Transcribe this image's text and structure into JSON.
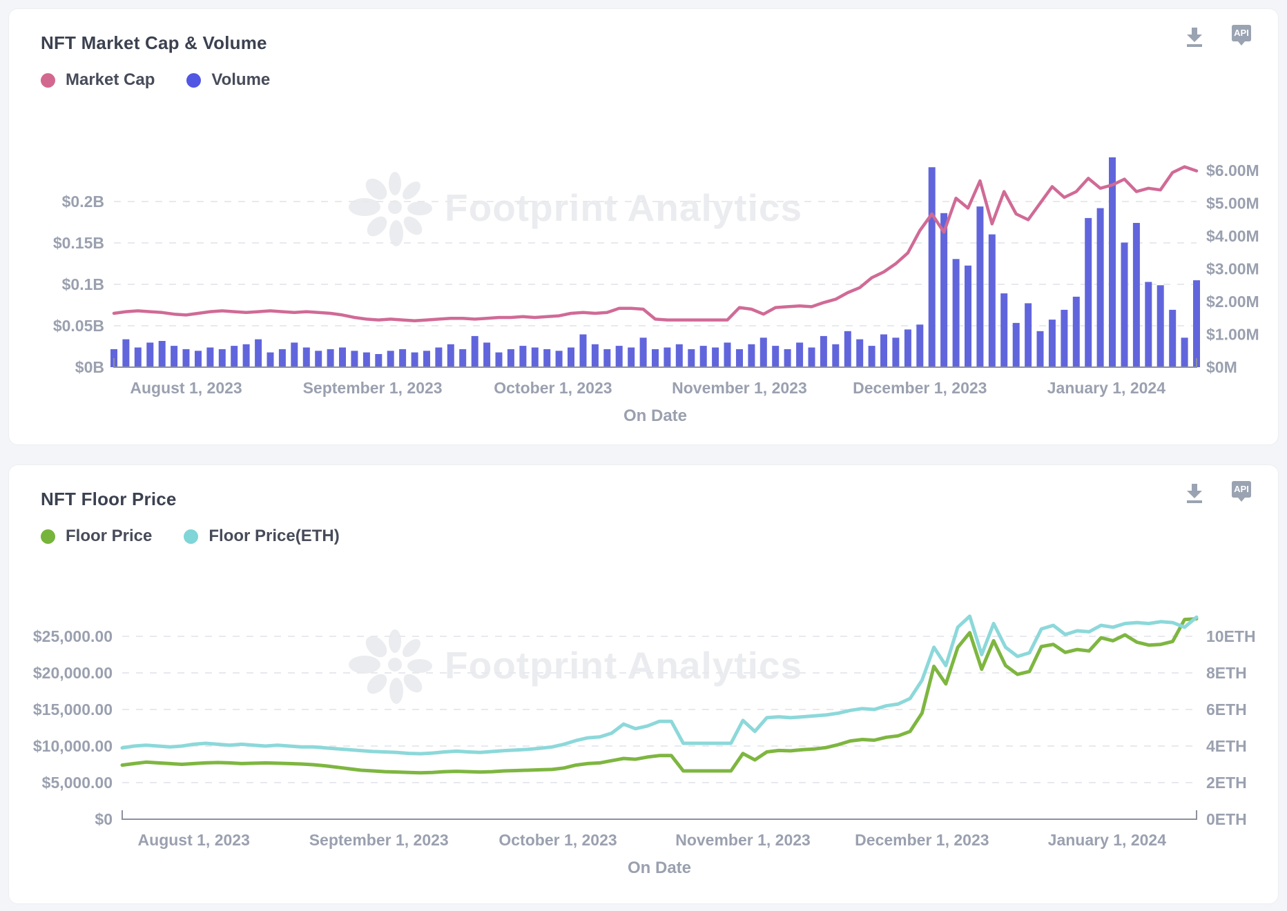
{
  "page": {
    "background": "#f3f5f8"
  },
  "toolbar": {
    "api_label": "API"
  },
  "charts": [
    {
      "title": "NFT Market Cap & Volume",
      "watermark": "Footprint Analytics",
      "legend": [
        {
          "label": "Market Cap",
          "color": "#d2688f"
        },
        {
          "label": "Volume",
          "color": "#5157e2"
        }
      ],
      "x_axis": {
        "title": "On Date",
        "total_days": 180,
        "months": [
          {
            "day": 12,
            "label": "August 1, 2023"
          },
          {
            "day": 43,
            "label": "September 1, 2023"
          },
          {
            "day": 73,
            "label": "October 1, 2023"
          },
          {
            "day": 104,
            "label": "November 1, 2023"
          },
          {
            "day": 134,
            "label": "December 1, 2023"
          },
          {
            "day": 165,
            "label": "January 1, 2024"
          }
        ]
      },
      "left_axis": {
        "tick_values": [
          0,
          0.05,
          0.1,
          0.15,
          0.2
        ],
        "ticks": [
          "$0B",
          "$0.05B",
          "$0.1B",
          "$0.15B",
          "$0.2B"
        ]
      },
      "right_axis": {
        "tick_values": [
          0,
          1,
          2,
          3,
          4,
          5,
          6
        ],
        "ticks": [
          "$0M",
          "$1.00M",
          "$2.00M",
          "$3.00M",
          "$4.00M",
          "$5.00M",
          "$6.00M"
        ]
      }
    },
    {
      "title": "NFT Floor Price",
      "watermark": "Footprint Analytics",
      "legend": [
        {
          "label": "Floor Price",
          "color": "#76b43c"
        },
        {
          "label": "Floor Price(ETH)",
          "color": "#7fd5d7"
        }
      ],
      "x_axis": {
        "title": "On Date",
        "total_days": 180,
        "months": [
          {
            "day": 12,
            "label": "August 1, 2023"
          },
          {
            "day": 43,
            "label": "September 1, 2023"
          },
          {
            "day": 73,
            "label": "October 1, 2023"
          },
          {
            "day": 104,
            "label": "November 1, 2023"
          },
          {
            "day": 134,
            "label": "December 1, 2023"
          },
          {
            "day": 165,
            "label": "January 1, 2024"
          }
        ]
      },
      "left_axis": {
        "tick_values": [
          0,
          5000,
          10000,
          15000,
          20000,
          25000
        ],
        "ticks": [
          "$0",
          "$5,000.00",
          "$10,000.00",
          "$15,000.00",
          "$20,000.00",
          "$25,000.00"
        ]
      },
      "right_axis": {
        "tick_values": [
          0,
          2,
          4,
          6,
          8,
          10
        ],
        "ticks": [
          "0ETH",
          "2ETH",
          "4ETH",
          "6ETH",
          "8ETH",
          "10ETH"
        ]
      }
    }
  ],
  "chart_data": [
    {
      "type": "line+bar",
      "x_start_date": "2023-07-20",
      "x_step_days": 2,
      "series": [
        {
          "name": "Market Cap",
          "type": "line",
          "axis": "left",
          "unit": "$B",
          "color": "#d06a96",
          "values": [
            0.065,
            0.067,
            0.068,
            0.067,
            0.066,
            0.064,
            0.063,
            0.065,
            0.067,
            0.068,
            0.067,
            0.066,
            0.067,
            0.068,
            0.067,
            0.066,
            0.067,
            0.066,
            0.065,
            0.063,
            0.06,
            0.058,
            0.057,
            0.058,
            0.057,
            0.056,
            0.057,
            0.058,
            0.059,
            0.059,
            0.058,
            0.059,
            0.06,
            0.06,
            0.061,
            0.06,
            0.061,
            0.062,
            0.065,
            0.066,
            0.065,
            0.066,
            0.071,
            0.071,
            0.07,
            0.058,
            0.057,
            0.057,
            0.057,
            0.057,
            0.057,
            0.057,
            0.072,
            0.07,
            0.064,
            0.072,
            0.073,
            0.074,
            0.073,
            0.078,
            0.082,
            0.09,
            0.096,
            0.108,
            0.115,
            0.125,
            0.138,
            0.165,
            0.185,
            0.163,
            0.204,
            0.192,
            0.225,
            0.173,
            0.212,
            0.185,
            0.178,
            0.198,
            0.218,
            0.205,
            0.212,
            0.228,
            0.216,
            0.22,
            0.227,
            0.212,
            0.216,
            0.214,
            0.235,
            0.242,
            0.237
          ]
        },
        {
          "name": "Volume",
          "type": "bar",
          "axis": "right",
          "unit": "$M",
          "color": "#6165dc",
          "values": [
            0.55,
            0.85,
            0.6,
            0.75,
            0.8,
            0.65,
            0.55,
            0.5,
            0.6,
            0.55,
            0.65,
            0.7,
            0.85,
            0.45,
            0.55,
            0.75,
            0.6,
            0.5,
            0.55,
            0.6,
            0.5,
            0.45,
            0.4,
            0.5,
            0.55,
            0.45,
            0.5,
            0.6,
            0.7,
            0.55,
            0.95,
            0.75,
            0.45,
            0.55,
            0.65,
            0.6,
            0.55,
            0.5,
            0.6,
            1.0,
            0.7,
            0.55,
            0.65,
            0.6,
            0.9,
            0.55,
            0.6,
            0.7,
            0.55,
            0.65,
            0.6,
            0.75,
            0.55,
            0.7,
            0.9,
            0.65,
            0.55,
            0.75,
            0.6,
            0.95,
            0.7,
            1.1,
            0.85,
            0.65,
            1.0,
            0.9,
            1.15,
            1.3,
            6.1,
            4.7,
            3.3,
            3.1,
            4.9,
            4.05,
            2.25,
            1.35,
            1.95,
            1.1,
            1.45,
            1.75,
            2.15,
            4.55,
            4.85,
            6.4,
            3.8,
            4.4,
            2.6,
            2.5,
            1.75,
            0.9,
            2.65
          ]
        }
      ]
    },
    {
      "type": "line",
      "x_start_date": "2023-07-20",
      "x_step_days": 2,
      "series": [
        {
          "name": "Floor Price",
          "type": "line",
          "axis": "left",
          "unit": "$",
          "color": "#7eb640",
          "values": [
            7400,
            7600,
            7800,
            7700,
            7600,
            7500,
            7600,
            7700,
            7750,
            7700,
            7600,
            7650,
            7700,
            7650,
            7600,
            7550,
            7450,
            7300,
            7100,
            6900,
            6700,
            6600,
            6500,
            6450,
            6400,
            6350,
            6400,
            6500,
            6550,
            6500,
            6450,
            6500,
            6600,
            6650,
            6700,
            6750,
            6800,
            7000,
            7400,
            7600,
            7700,
            8000,
            8300,
            8200,
            8500,
            8700,
            8700,
            6600,
            6600,
            6600,
            6600,
            6600,
            8980,
            8100,
            9200,
            9400,
            9350,
            9500,
            9600,
            9800,
            10200,
            10700,
            10900,
            10800,
            11200,
            11400,
            12000,
            14500,
            20900,
            18500,
            23500,
            25500,
            20500,
            24400,
            21000,
            19800,
            20200,
            23600,
            23900,
            22800,
            23200,
            23000,
            24800,
            24400,
            25200,
            24200,
            23800,
            23900,
            24300,
            27300,
            27400
          ]
        },
        {
          "name": "Floor Price(ETH)",
          "type": "line",
          "axis": "right",
          "unit": "ETH",
          "color": "#8cd8da",
          "values": [
            3.9,
            4.0,
            4.05,
            4.0,
            3.95,
            4.0,
            4.1,
            4.15,
            4.1,
            4.05,
            4.1,
            4.05,
            4.0,
            4.05,
            4.0,
            3.95,
            3.95,
            3.9,
            3.85,
            3.8,
            3.75,
            3.7,
            3.68,
            3.65,
            3.6,
            3.58,
            3.62,
            3.68,
            3.72,
            3.68,
            3.65,
            3.7,
            3.75,
            3.78,
            3.82,
            3.88,
            3.95,
            4.1,
            4.3,
            4.45,
            4.5,
            4.7,
            5.2,
            4.95,
            5.1,
            5.35,
            5.35,
            4.15,
            4.15,
            4.15,
            4.15,
            4.15,
            5.4,
            4.8,
            5.55,
            5.6,
            5.55,
            5.6,
            5.65,
            5.7,
            5.8,
            5.95,
            6.05,
            6.0,
            6.2,
            6.3,
            6.6,
            7.6,
            9.4,
            8.4,
            10.5,
            11.1,
            9.0,
            10.7,
            9.4,
            8.9,
            9.1,
            10.4,
            10.6,
            10.1,
            10.3,
            10.25,
            10.6,
            10.5,
            10.7,
            10.75,
            10.7,
            10.8,
            10.75,
            10.5,
            11.05
          ]
        }
      ]
    }
  ]
}
